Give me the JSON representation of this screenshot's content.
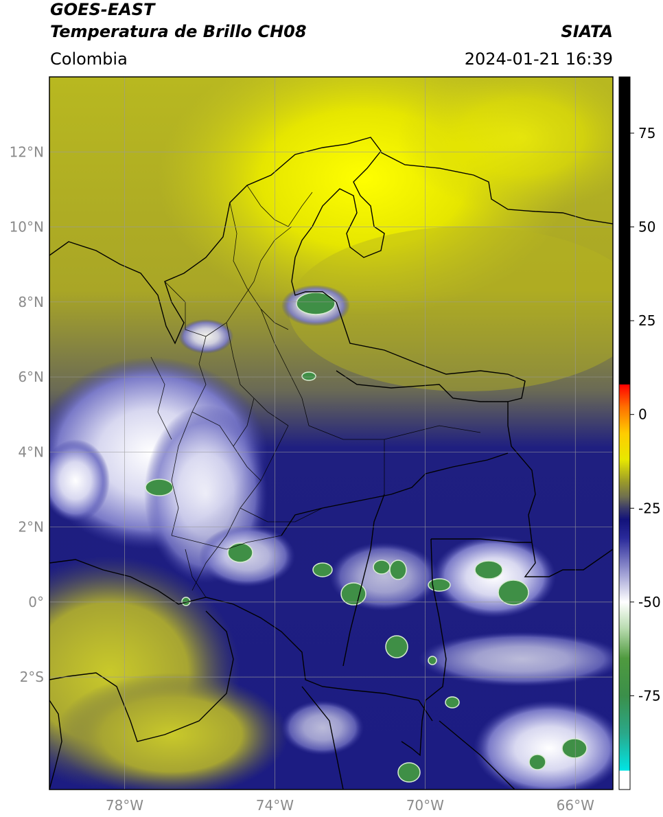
{
  "header": {
    "satellite": "GOES-EAST",
    "product": "Temperatura de Brillo CH08",
    "institution": "SIATA",
    "region": "Colombia",
    "datetime": "2024-01-21 16:39"
  },
  "map": {
    "lon_range": [
      -80,
      -65
    ],
    "lat_range": [
      -5,
      14
    ],
    "lat_ticks": [
      {
        "value": 12,
        "label": "12°N"
      },
      {
        "value": 10,
        "label": "10°N"
      },
      {
        "value": 8,
        "label": "8°N"
      },
      {
        "value": 6,
        "label": "6°N"
      },
      {
        "value": 4,
        "label": "4°N"
      },
      {
        "value": 2,
        "label": "2°N"
      },
      {
        "value": 0,
        "label": "0°"
      },
      {
        "value": -2,
        "label": "2°S"
      }
    ],
    "lon_ticks": [
      {
        "value": -78,
        "label": "78°W"
      },
      {
        "value": -74,
        "label": "74°W"
      },
      {
        "value": -70,
        "label": "70°W"
      },
      {
        "value": -66,
        "label": "66°W"
      }
    ],
    "grid": true
  },
  "colorbar": {
    "range": [
      -100,
      90
    ],
    "ticks": [
      {
        "value": 75,
        "label": "75"
      },
      {
        "value": 50,
        "label": "50"
      },
      {
        "value": 25,
        "label": "25"
      },
      {
        "value": 0,
        "label": "0"
      },
      {
        "value": -25,
        "label": "-25"
      },
      {
        "value": -50,
        "label": "-50"
      },
      {
        "value": -75,
        "label": "-75"
      }
    ],
    "stops": [
      {
        "value": -100,
        "color": "#ffffff"
      },
      {
        "value": -95,
        "color": "#ffffff"
      },
      {
        "value": -95,
        "color": "#00e5e5"
      },
      {
        "value": -85,
        "color": "#2aa88a"
      },
      {
        "value": -75,
        "color": "#3b8f4a"
      },
      {
        "value": -65,
        "color": "#4f9a3f"
      },
      {
        "value": -57,
        "color": "#b9dcb0"
      },
      {
        "value": -50,
        "color": "#ffffff"
      },
      {
        "value": -42,
        "color": "#9a9ad2"
      },
      {
        "value": -33,
        "color": "#2a2a9a"
      },
      {
        "value": -28,
        "color": "#12127a"
      },
      {
        "value": -25,
        "color": "#3a3a6a"
      },
      {
        "value": -22,
        "color": "#6e6e50"
      },
      {
        "value": -18,
        "color": "#9a9a2a"
      },
      {
        "value": -12,
        "color": "#e8e800"
      },
      {
        "value": -5,
        "color": "#ffcc00"
      },
      {
        "value": 2,
        "color": "#ff7000"
      },
      {
        "value": 8,
        "color": "#ff0000"
      },
      {
        "value": 8,
        "color": "#000000"
      },
      {
        "value": 90,
        "color": "#000000"
      }
    ]
  }
}
